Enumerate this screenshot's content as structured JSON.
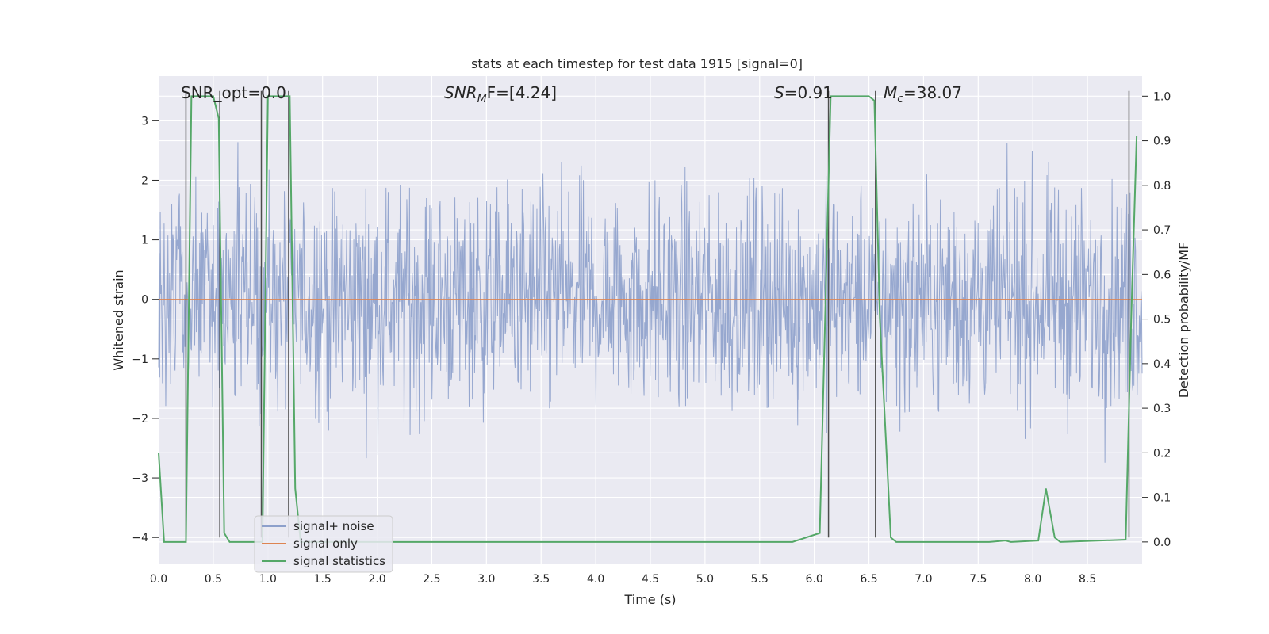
{
  "chart_data": {
    "type": "line",
    "title": "stats at each timestep for test data 1915 [signal=0]",
    "xlabel": "Time (s)",
    "ylabel": "Whitened strain",
    "ylabel_right": "Detection probability/MF",
    "xlim": [
      0.0,
      9.0
    ],
    "ylim": [
      -4.45,
      3.75
    ],
    "ylim_right": [
      -0.05,
      1.045
    ],
    "xticks": [
      0.0,
      0.5,
      1.0,
      1.5,
      2.0,
      2.5,
      3.0,
      3.5,
      4.0,
      4.5,
      5.0,
      5.5,
      6.0,
      6.5,
      7.0,
      7.5,
      8.0,
      8.5
    ],
    "xtick_labels": [
      "0.0",
      "0.5",
      "1.0",
      "1.5",
      "2.0",
      "2.5",
      "3.0",
      "3.5",
      "4.0",
      "4.5",
      "5.0",
      "5.5",
      "6.0",
      "6.5",
      "7.0",
      "7.5",
      "8.0",
      "8.5"
    ],
    "yticks": [
      -4,
      -3,
      -2,
      -1,
      0,
      1,
      2,
      3
    ],
    "ytick_labels": [
      "−4",
      "−3",
      "−2",
      "−1",
      "0",
      "1",
      "2",
      "3"
    ],
    "yticks_right": [
      0.0,
      0.1,
      0.2,
      0.3,
      0.4,
      0.5,
      0.6,
      0.7,
      0.8,
      0.9,
      1.0
    ],
    "ytick_labels_right": [
      "0.0",
      "0.1",
      "0.2",
      "0.3",
      "0.4",
      "0.5",
      "0.6",
      "0.7",
      "0.8",
      "0.9",
      "1.0"
    ],
    "annotations": {
      "snr_opt": "SNR_opt=0.0",
      "snr_mf_base": "SNR",
      "snr_mf_sub": "M",
      "snr_mf_tail": "F=[4.24]",
      "s_label": "S",
      "s_value": "=0.91",
      "mc_label": "M",
      "mc_sub": "c",
      "mc_value": "=38.07"
    },
    "series": [
      {
        "name": "signal+ noise",
        "color": "#8da0cb",
        "description": "whitened noisy strain, roughly Gaussian, amplitude within about -3.8..3.2",
        "noise_envelope": {
          "typical_abs": 1.7,
          "peak_abs": 3.2,
          "sample_count": 1800
        }
      },
      {
        "name": "signal only",
        "color": "#dd8452",
        "x": [
          0.0,
          9.0
        ],
        "y": [
          0.0,
          0.0
        ]
      },
      {
        "name": "signal statistics",
        "color": "#55a868",
        "axis": "right",
        "x": [
          0.0,
          0.05,
          0.25,
          0.3,
          0.45,
          0.5,
          0.55,
          0.6,
          0.65,
          0.7,
          0.95,
          1.0,
          1.2,
          1.25,
          1.3,
          5.8,
          6.05,
          6.15,
          6.5,
          6.55,
          6.6,
          6.7,
          6.75,
          7.6,
          7.75,
          7.8,
          8.05,
          8.12,
          8.2,
          8.25,
          8.85,
          8.9,
          8.95
        ],
        "y": [
          0.2,
          0.0,
          0.0,
          1.0,
          1.0,
          1.0,
          0.95,
          0.02,
          0.0,
          0.0,
          0.0,
          1.0,
          1.0,
          0.12,
          0.0,
          0.0,
          0.02,
          1.0,
          1.0,
          0.99,
          0.5,
          0.01,
          0.0,
          0.0,
          0.003,
          0.0,
          0.003,
          0.12,
          0.01,
          0.0,
          0.005,
          0.5,
          0.91
        ]
      }
    ],
    "vertical_markers": [
      {
        "x": 0.25,
        "y_top": 3.5,
        "y_bottom": -4.0
      },
      {
        "x": 0.56,
        "y_top": 3.5,
        "y_bottom": -4.0
      },
      {
        "x": 0.94,
        "y_top": 3.5,
        "y_bottom": -4.0
      },
      {
        "x": 1.19,
        "y_top": 3.5,
        "y_bottom": -4.0
      },
      {
        "x": 6.13,
        "y_top": 3.5,
        "y_bottom": -4.0
      },
      {
        "x": 6.56,
        "y_top": 3.5,
        "y_bottom": -4.0
      },
      {
        "x": 8.88,
        "y_top": 3.5,
        "y_bottom": -4.0
      }
    ],
    "legend": {
      "placement": "lower-left",
      "entries": [
        {
          "label": "signal+ noise",
          "color": "#8da0cb"
        },
        {
          "label": "signal only",
          "color": "#dd8452"
        },
        {
          "label": "signal statistics",
          "color": "#55a868"
        }
      ]
    },
    "colors": {
      "plot_background": "#eaeaf2",
      "grid": "#ffffff",
      "marker": "#4d4d4d"
    }
  }
}
